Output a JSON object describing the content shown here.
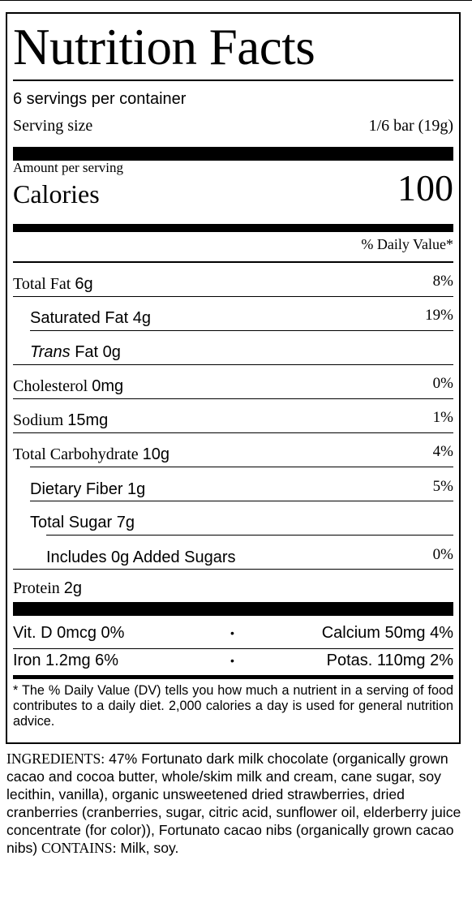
{
  "label": {
    "title": "Nutrition Facts",
    "servings_per_container": "6 servings per container",
    "serving_size_label": "Serving size",
    "serving_size_value": "1/6 bar (19g)",
    "amount_per_serving": "Amount per serving",
    "calories_label": "Calories",
    "calories_value": "100",
    "daily_value_header": "% Daily Value*",
    "nutrients": [
      {
        "name": "Total Fat",
        "amount": "6g",
        "dv": "8%"
      },
      {
        "name": "Saturated Fat",
        "amount": "4g",
        "dv": "19%"
      },
      {
        "name_italic": "Trans",
        "name": "Fat",
        "amount": "0g",
        "dv": ""
      },
      {
        "name": "Cholesterol",
        "amount": "0mg",
        "dv": "0%"
      },
      {
        "name": "Sodium",
        "amount": "15mg",
        "dv": "1%"
      },
      {
        "name": "Total Carbohydrate",
        "amount": "10g",
        "dv": "4%"
      },
      {
        "name": "Dietary Fiber",
        "amount": "1g",
        "dv": "5%"
      },
      {
        "name": "Total Sugar",
        "amount": "7g",
        "dv": ""
      },
      {
        "name": "Includes 0g Added Sugars",
        "amount": "",
        "dv": "0%"
      },
      {
        "name": "Protein",
        "amount": "2g",
        "dv": ""
      }
    ],
    "vitamins": [
      {
        "left": "Vit. D 0mcg 0%",
        "bullet": "•",
        "right": "Calcium 50mg 4%"
      },
      {
        "left": "Iron 1.2mg 6%",
        "bullet": "•",
        "right": "Potas. 110mg 2%"
      }
    ],
    "footnote": "* The % Daily Value (DV) tells you how much a nutrient in a serving of food contributes to a daily diet. 2,000 calories a day is used for general nutrition advice."
  },
  "ingredients": {
    "label": "INGREDIENTS:",
    "text": "47% Fortunato dark milk chocolate (organically grown cacao and cocoa butter, whole/skim milk and cream, cane sugar, soy lecithin, vanilla), organic unsweetened dried strawberries, dried cranberries (cranberries, sugar, citric acid, sunflower oil, elderberry juice concentrate (for color)), Fortunato cacao nibs (organically grown cacao nibs)",
    "contains_label": "CONTAINS:",
    "contains_text": "Milk, soy."
  }
}
